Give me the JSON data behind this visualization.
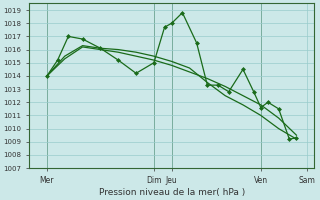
{
  "background_color": "#cce8e8",
  "plot_bg_color": "#cce8e8",
  "grid_color": "#99cccc",
  "line_color": "#1a6b1a",
  "marker_color": "#1a6b1a",
  "xlabel": "Pression niveau de la mer( hPa )",
  "ylim": [
    1007,
    1019.5
  ],
  "yticks": [
    1007,
    1008,
    1009,
    1010,
    1011,
    1012,
    1013,
    1014,
    1015,
    1016,
    1017,
    1018,
    1019
  ],
  "xlim": [
    0,
    8.0
  ],
  "vlines_x": [
    0.5,
    3.5,
    4.0,
    6.5
  ],
  "line1_x": [
    0.5,
    1.0,
    1.5,
    2.0,
    2.5,
    3.0,
    3.5,
    4.0,
    4.5,
    5.0,
    5.5,
    6.0,
    6.5,
    7.0,
    7.5
  ],
  "line1_y": [
    1014.0,
    1015.3,
    1016.2,
    1016.0,
    1015.8,
    1015.5,
    1015.2,
    1014.8,
    1014.3,
    1013.8,
    1013.2,
    1012.5,
    1011.8,
    1010.8,
    1009.5
  ],
  "line2_x": [
    0.5,
    1.0,
    1.5,
    2.0,
    2.5,
    3.0,
    3.5,
    4.0,
    4.5,
    5.0,
    5.5,
    6.0,
    6.5,
    7.0,
    7.5
  ],
  "line2_y": [
    1014.0,
    1015.5,
    1016.3,
    1016.1,
    1016.0,
    1015.8,
    1015.5,
    1015.1,
    1014.6,
    1013.5,
    1012.5,
    1011.8,
    1011.0,
    1010.0,
    1009.2
  ],
  "line3_x": [
    0.5,
    0.8,
    1.1,
    1.5,
    2.0,
    2.5,
    3.0,
    3.5,
    3.8,
    4.0,
    4.3,
    4.7,
    5.0,
    5.3,
    5.6,
    6.0,
    6.3,
    6.5,
    6.7,
    7.0,
    7.3,
    7.5
  ],
  "line3_y": [
    1014.0,
    1015.2,
    1017.0,
    1016.8,
    1016.1,
    1015.2,
    1014.2,
    1015.0,
    1017.7,
    1018.0,
    1018.8,
    1016.5,
    1013.3,
    1013.3,
    1012.8,
    1014.5,
    1012.8,
    1011.6,
    1012.0,
    1011.5,
    1009.2,
    1009.3
  ],
  "xtick_positions": [
    0.5,
    3.5,
    4.0,
    6.5,
    7.8
  ],
  "xtick_labels": [
    "Mer",
    "Dim",
    "Jeu",
    "Ven",
    "Sam"
  ]
}
